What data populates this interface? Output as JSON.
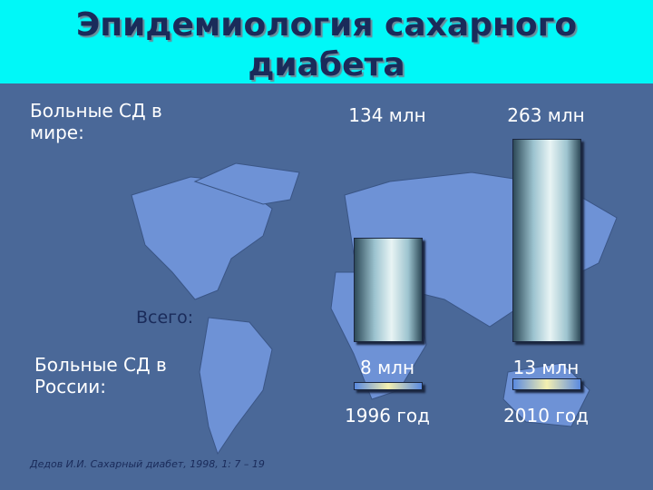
{
  "chart_data": {
    "type": "bar",
    "title": "Эпидемиология сахарного диабета",
    "total_label": "Всего:",
    "categories": [
      "1996 год",
      "2010 год"
    ],
    "series": [
      {
        "name": "Больные СД в мире:",
        "color": "#9cc3cf",
        "values": [
          134,
          263
        ],
        "value_labels": [
          "134 млн",
          "263 млн"
        ]
      },
      {
        "name": "Больные СД в России:",
        "color": "#5a8ae0",
        "values": [
          8,
          13
        ],
        "value_labels": [
          "8 млн",
          "13 млн"
        ]
      }
    ],
    "source": "Дедов И.И. Сахарный диабет, 1998, 1: 7 – 19"
  }
}
